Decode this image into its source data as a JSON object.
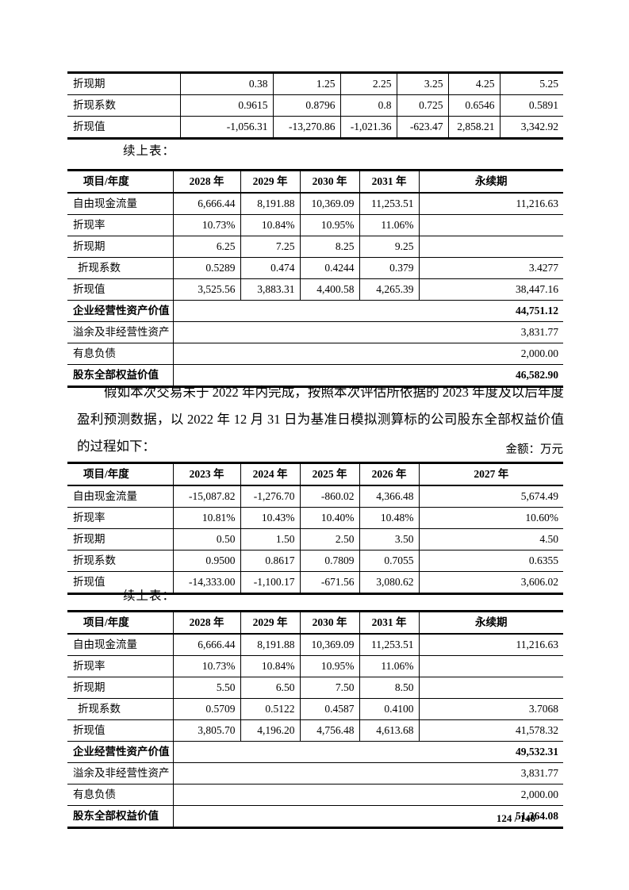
{
  "page": {
    "footer_page_number": "124 / 146"
  },
  "labels": {
    "continued_table": "续上表：",
    "unit_note": "金额：万元"
  },
  "paragraph": {
    "text": "假如本次交易未于 2022 年内完成，按照本次评估所依据的 2023 年度及以后年度盈利预测数据，以 2022 年 12 月 31 日为基准日模拟测算标的公司股东全部权益价值的过程如下："
  },
  "tables": {
    "t1": {
      "rows": [
        {
          "label": "折现期",
          "values": [
            "0.38",
            "1.25",
            "2.25",
            "3.25",
            "4.25",
            "5.25"
          ]
        },
        {
          "label": "折现系数",
          "values": [
            "0.9615",
            "0.8796",
            "0.8",
            "0.725",
            "0.6546",
            "0.5891"
          ]
        },
        {
          "label": "折现值",
          "values": [
            "-1,056.31",
            "-13,270.86",
            "-1,021.36",
            "-623.47",
            "2,858.21",
            "3,342.92"
          ]
        }
      ]
    },
    "t2": {
      "header": [
        "项目/年度",
        "2028 年",
        "2029 年",
        "2030 年",
        "2031 年",
        "永续期"
      ],
      "rows": [
        {
          "label": "自由现金流量",
          "values": [
            "6,666.44",
            "8,191.88",
            "10,369.09",
            "11,253.51",
            "11,216.63"
          ]
        },
        {
          "label": "折现率",
          "values": [
            "10.73%",
            "10.84%",
            "10.95%",
            "11.06%",
            ""
          ]
        },
        {
          "label": "折现期",
          "values": [
            "6.25",
            "7.25",
            "8.25",
            "9.25",
            ""
          ]
        },
        {
          "label": "折现系数",
          "indent": true,
          "values": [
            "0.5289",
            "0.474",
            "0.4244",
            "0.379",
            "3.4277"
          ]
        },
        {
          "label": "折现值",
          "values": [
            "3,525.56",
            "3,883.31",
            "4,400.58",
            "4,265.39",
            "38,447.16"
          ]
        }
      ],
      "summary": [
        {
          "label": "企业经营性资产价值",
          "value": "44,751.12",
          "bold": true
        },
        {
          "label": "溢余及非经营性资产",
          "value": "3,831.77",
          "bold": false
        },
        {
          "label": "有息负债",
          "value": "2,000.00",
          "bold": false
        },
        {
          "label": "股东全部权益价值",
          "value": "46,582.90",
          "bold": true
        }
      ]
    },
    "t3": {
      "header": [
        "项目/年度",
        "2023 年",
        "2024 年",
        "2025 年",
        "2026 年",
        "2027 年"
      ],
      "rows": [
        {
          "label": "自由现金流量",
          "values": [
            "-15,087.82",
            "-1,276.70",
            "-860.02",
            "4,366.48",
            "5,674.49"
          ]
        },
        {
          "label": "折现率",
          "values": [
            "10.81%",
            "10.43%",
            "10.40%",
            "10.48%",
            "10.60%"
          ]
        },
        {
          "label": "折现期",
          "values": [
            "0.50",
            "1.50",
            "2.50",
            "3.50",
            "4.50"
          ]
        },
        {
          "label": "折现系数",
          "values": [
            "0.9500",
            "0.8617",
            "0.7809",
            "0.7055",
            "0.6355"
          ]
        },
        {
          "label": "折现值",
          "values": [
            "-14,333.00",
            "-1,100.17",
            "-671.56",
            "3,080.62",
            "3,606.02"
          ]
        }
      ]
    },
    "t4": {
      "header": [
        "项目/年度",
        "2028 年",
        "2029 年",
        "2030 年",
        "2031 年",
        "永续期"
      ],
      "rows": [
        {
          "label": "自由现金流量",
          "values": [
            "6,666.44",
            "8,191.88",
            "10,369.09",
            "11,253.51",
            "11,216.63"
          ]
        },
        {
          "label": "折现率",
          "values": [
            "10.73%",
            "10.84%",
            "10.95%",
            "11.06%",
            ""
          ]
        },
        {
          "label": "折现期",
          "values": [
            "5.50",
            "6.50",
            "7.50",
            "8.50",
            ""
          ]
        },
        {
          "label": "折现系数",
          "indent": true,
          "values": [
            "0.5709",
            "0.5122",
            "0.4587",
            "0.4100",
            "3.7068"
          ]
        },
        {
          "label": "折现值",
          "values": [
            "3,805.70",
            "4,196.20",
            "4,756.48",
            "4,613.68",
            "41,578.32"
          ]
        }
      ],
      "summary": [
        {
          "label": "企业经营性资产价值",
          "value": "49,532.31",
          "bold": true
        },
        {
          "label": "溢余及非经营性资产",
          "value": "3,831.77",
          "bold": false
        },
        {
          "label": "有息负债",
          "value": "2,000.00",
          "bold": false
        },
        {
          "label": "股东全部权益价值",
          "value": "51,364.08",
          "bold": true
        }
      ]
    }
  }
}
